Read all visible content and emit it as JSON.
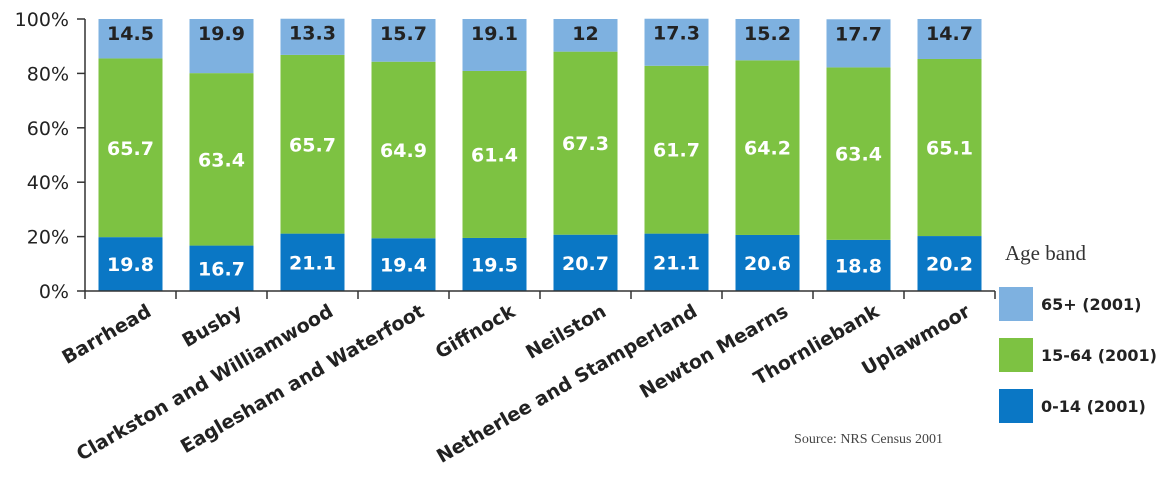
{
  "chart_data": {
    "type": "bar",
    "stacked": true,
    "categories": [
      "Barrhead",
      "Busby",
      "Clarkston and Williamwood",
      "Eaglesham and Waterfoot",
      "Giffnock",
      "Neilston",
      "Netherlee and Stamperland",
      "Newton Mearns",
      "Thornliebank",
      "Uplawmoor"
    ],
    "series": [
      {
        "name": "0-14 (2001)",
        "color": "#0a77c5",
        "values": [
          19.8,
          16.7,
          21.1,
          19.4,
          19.5,
          20.7,
          21.1,
          20.6,
          18.8,
          20.2
        ]
      },
      {
        "name": "15-64 (2001)",
        "color": "#7dc242",
        "values": [
          65.7,
          63.4,
          65.7,
          64.9,
          61.4,
          67.3,
          61.7,
          64.2,
          63.4,
          65.1
        ]
      },
      {
        "name": "65+ (2001)",
        "color": "#7eb1e0",
        "values": [
          14.5,
          19.9,
          13.3,
          15.7,
          19.1,
          12,
          17.3,
          15.2,
          17.7,
          14.7
        ]
      }
    ],
    "yticks": [
      "0%",
      "20%",
      "40%",
      "60%",
      "80%",
      "100%"
    ],
    "ylim": [
      0,
      100
    ],
    "legend_title": "Age band",
    "legend_position": "right",
    "source": "Source: NRS Census 2001"
  }
}
